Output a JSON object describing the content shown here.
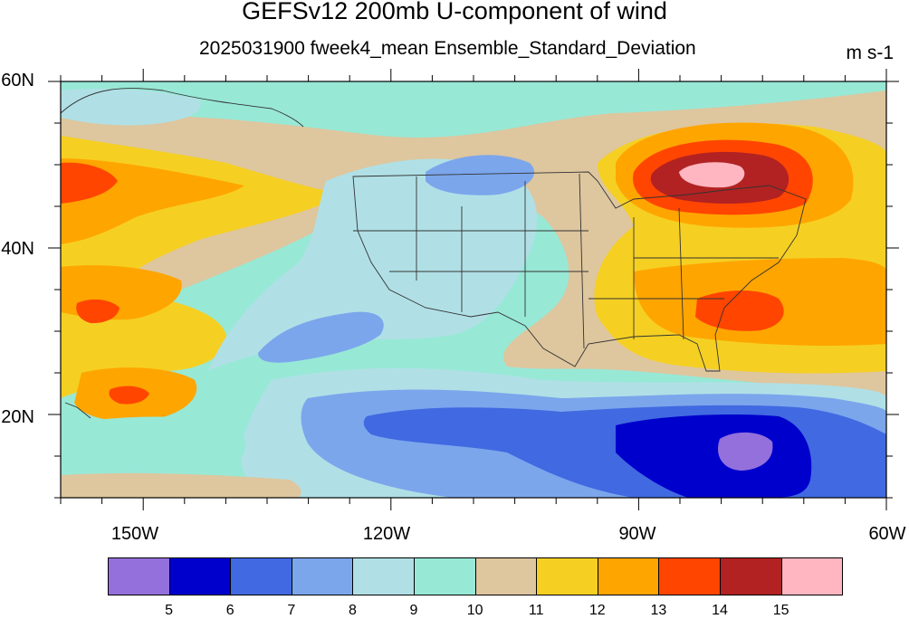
{
  "title": "GEFSv12 200mb U-component of wind",
  "subtitle": "2025031900 fweek4_mean Ensemble_Standard_Deviation",
  "units": "m s-1",
  "lat_labels": [
    "60N",
    "40N",
    "20N"
  ],
  "lon_labels": [
    "150W",
    "120W",
    "90W",
    "60W"
  ],
  "colorbar": {
    "levels": [
      "5",
      "6",
      "7",
      "8",
      "9",
      "10",
      "11",
      "12",
      "13",
      "14",
      "15"
    ],
    "colors": [
      "#9370db",
      "#0000cd",
      "#4169e1",
      "#7ba6ec",
      "#b0e0e6",
      "#98e8d6",
      "#dec69e",
      "#f5d022",
      "#ffa500",
      "#ff4500",
      "#b22222",
      "#ffb6c1"
    ]
  },
  "map": {
    "extent": {
      "lon": [
        -160,
        -60
      ],
      "lat": [
        10,
        60
      ]
    },
    "background_color": "#98e8d6",
    "features": [
      "US state boundaries",
      "coastlines"
    ]
  }
}
